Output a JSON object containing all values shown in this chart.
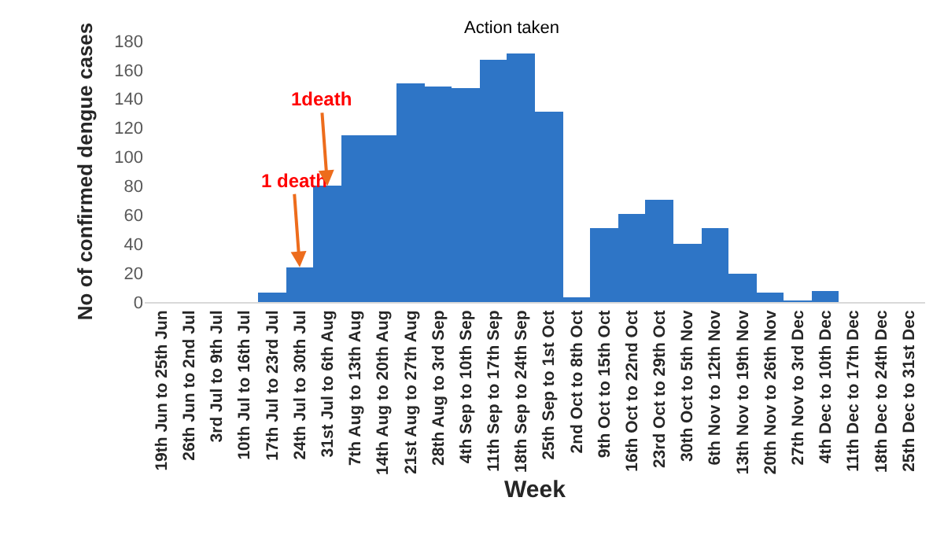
{
  "chart_data": {
    "type": "bar",
    "xlabel": "Week",
    "ylabel": "No of confirmed dengue cases",
    "categories": [
      "19th Jun to 25th Jun",
      "26th Jun to 2nd Jul",
      "3rd Jul to 9th Jul",
      "10th Jul to 16th Jul",
      "17th Jul to 23rd Jul",
      "24th Jul to 30th Jul",
      "31st Jul to 6th Aug",
      "7th Aug to 13th Aug",
      "14th Aug to 20th Aug",
      "21st Aug to 27th Aug",
      "28th Aug to 3rd Sep",
      "4th Sep to 10th Sep",
      "11th Sep to 17th Sep",
      "18th Sep to 24th Sep",
      "25th Sep to 1st Oct",
      "2nd Oct to 8th Oct",
      "9th Oct to 15th Oct",
      "16th Oct to 22nd Oct",
      "23rd Oct to 29th Oct",
      "30th Oct to 5th Nov",
      "6th Nov to 12th Nov",
      "13th Nov to 19th Nov",
      "20th Nov to 26th Nov",
      "27th Nov to 3rd Dec",
      "4th Dec to 10th Dec",
      "11th Dec to 17th Dec",
      "18th Dec to 24th Dec",
      "25th Dec to 31st Dec"
    ],
    "values": [
      0,
      0,
      0,
      0,
      6,
      24,
      80,
      115,
      115,
      151,
      149,
      148,
      167,
      171,
      131,
      3,
      51,
      61,
      70,
      40,
      51,
      20,
      7,
      1,
      8,
      0,
      0,
      0
    ],
    "color": "#2e75c6",
    "ylim": [
      0,
      180
    ],
    "yticks": [
      0,
      20,
      40,
      60,
      80,
      100,
      120,
      140,
      160,
      180
    ],
    "grid": false,
    "annotations": [
      {
        "text": "1 death",
        "x": "24th Jul to 30th Jul",
        "y": 24
      },
      {
        "text": "1death",
        "x": "31st Jul to 6th Aug",
        "y": 80
      },
      "Action taken"
    ]
  }
}
